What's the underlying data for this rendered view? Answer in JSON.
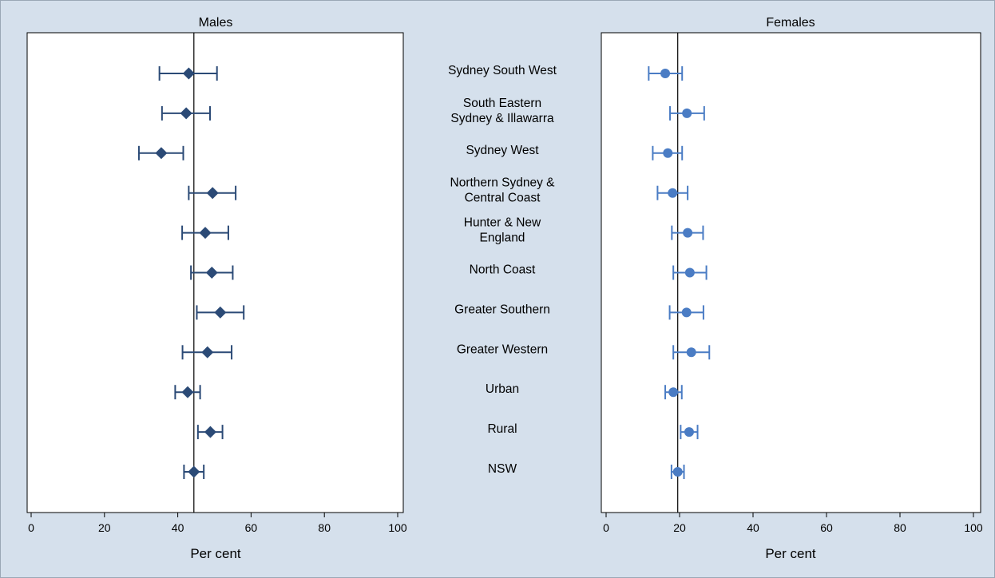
{
  "chart_data": [
    {
      "type": "scatter",
      "title": "Males",
      "xlabel": "Per cent",
      "xlim": [
        0,
        100
      ],
      "xticks": [
        "0",
        "20",
        "40",
        "60",
        "80",
        "100"
      ],
      "reference_line": 44.4,
      "marker": "diamond",
      "color": "#2b4a76",
      "categories": [
        "Sydney South West",
        "South Eastern Sydney & Illawarra",
        "Sydney West",
        "Northern Sydney & Central Coast",
        "Hunter & New England",
        "North Coast",
        "Greater Southern",
        "Greater Western",
        "Urban",
        "Rural",
        "NSW"
      ],
      "values": [
        43.0,
        42.3,
        35.5,
        49.5,
        47.5,
        49.3,
        51.6,
        48.1,
        42.7,
        48.9,
        44.4
      ],
      "ci_low": [
        35.0,
        35.7,
        29.4,
        43.0,
        41.2,
        43.6,
        45.2,
        41.3,
        39.3,
        45.5,
        41.7
      ],
      "ci_high": [
        50.7,
        48.8,
        41.5,
        55.8,
        53.8,
        55.0,
        58.0,
        54.7,
        46.1,
        52.2,
        47.1
      ]
    },
    {
      "type": "scatter",
      "title": "Females",
      "xlabel": "Per cent",
      "xlim": [
        0,
        100
      ],
      "xticks": [
        "0",
        "20",
        "40",
        "60",
        "80",
        "100"
      ],
      "reference_line": 19.5,
      "marker": "circle",
      "color": "#4a7cc4",
      "categories": [
        "Sydney South West",
        "South Eastern Sydney & Illawarra",
        "Sydney West",
        "Northern Sydney & Central Coast",
        "Hunter & New England",
        "North Coast",
        "Greater Southern",
        "Greater Western",
        "Urban",
        "Rural",
        "NSW"
      ],
      "values": [
        16.1,
        22.0,
        16.8,
        18.1,
        22.2,
        22.8,
        21.9,
        23.2,
        18.3,
        22.6,
        19.5
      ],
      "ci_low": [
        11.6,
        17.4,
        12.7,
        14.0,
        17.9,
        18.3,
        17.3,
        18.3,
        16.1,
        20.3,
        17.8
      ],
      "ci_high": [
        20.7,
        26.7,
        20.7,
        22.2,
        26.4,
        27.3,
        26.5,
        28.1,
        20.6,
        24.9,
        21.2
      ]
    }
  ],
  "middle_labels": [
    [
      "Sydney South West"
    ],
    [
      "South Eastern",
      "Sydney & Illawarra"
    ],
    [
      "Sydney West"
    ],
    [
      "Northern Sydney &",
      "Central Coast"
    ],
    [
      "Hunter & New",
      "England"
    ],
    [
      "North Coast"
    ],
    [
      "Greater Southern"
    ],
    [
      "Greater Western"
    ],
    [
      "Urban"
    ],
    [
      "Rural"
    ],
    [
      "NSW"
    ]
  ],
  "colors": {
    "background": "#d5e0ec",
    "plot_background": "#ffffff",
    "axis": "#000000"
  }
}
